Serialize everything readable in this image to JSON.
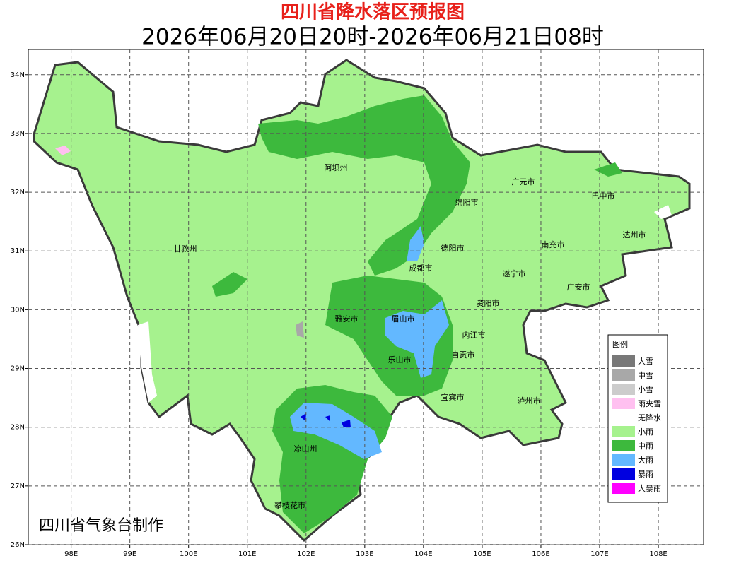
{
  "map": {
    "title": "四川省降水落区预报图",
    "subtitle": "2026年06月20日20时-2026年06月21日08时",
    "xlim": [
      97.27,
      108.77
    ],
    "ylim": [
      26,
      34.43
    ],
    "xticks": [
      {
        "value": 98,
        "label": "98E"
      },
      {
        "value": 99,
        "label": "99E"
      },
      {
        "value": 100,
        "label": "100E"
      },
      {
        "value": 101,
        "label": "101E"
      },
      {
        "value": 102,
        "label": "102E"
      },
      {
        "value": 103,
        "label": "103E"
      },
      {
        "value": 104,
        "label": "104E"
      },
      {
        "value": 105,
        "label": "105E"
      },
      {
        "value": 106,
        "label": "106E"
      },
      {
        "value": 107,
        "label": "107E"
      },
      {
        "value": 108,
        "label": "108E"
      }
    ],
    "yticks": [
      {
        "value": 26,
        "label": "26N"
      },
      {
        "value": 27,
        "label": "27N"
      },
      {
        "value": 28,
        "label": "28N"
      },
      {
        "value": 29,
        "label": "29N"
      },
      {
        "value": 30,
        "label": "30N"
      },
      {
        "value": 31,
        "label": "31N"
      },
      {
        "value": 32,
        "label": "32N"
      },
      {
        "value": 33,
        "label": "33N"
      },
      {
        "value": 34,
        "label": "34N"
      }
    ],
    "grid": true,
    "cities": [
      "阿坝州",
      "广元市",
      "巴中市",
      "绵阳市",
      "达州市",
      "甘孜州",
      "德阳市",
      "南充市",
      "成都市",
      "遂宁市",
      "广安市",
      "资阳市",
      "雅安市",
      "眉山市",
      "内江市",
      "自贡市",
      "乐山市",
      "宜宾市",
      "泸州市",
      "凉山州",
      "攀枝花市"
    ],
    "legend": {
      "title": "图例",
      "items": [
        {
          "name": "大雪",
          "color": "#787878"
        },
        {
          "name": "中雪",
          "color": "#a8a8a8"
        },
        {
          "name": "小雪",
          "color": "#cccccc"
        },
        {
          "name": "雨夹雪",
          "color": "#ffc0f0"
        },
        {
          "name": "无降水",
          "color": "#ffffff"
        },
        {
          "name": "小雨",
          "color": "#a6f28e"
        },
        {
          "name": "中雨",
          "color": "#3db93d"
        },
        {
          "name": "大雨",
          "color": "#63b8ff"
        },
        {
          "name": "暴雨",
          "color": "#0000e0"
        },
        {
          "name": "大暴雨",
          "color": "#ff00ff"
        }
      ]
    },
    "credit": "四川省气象台制作"
  }
}
